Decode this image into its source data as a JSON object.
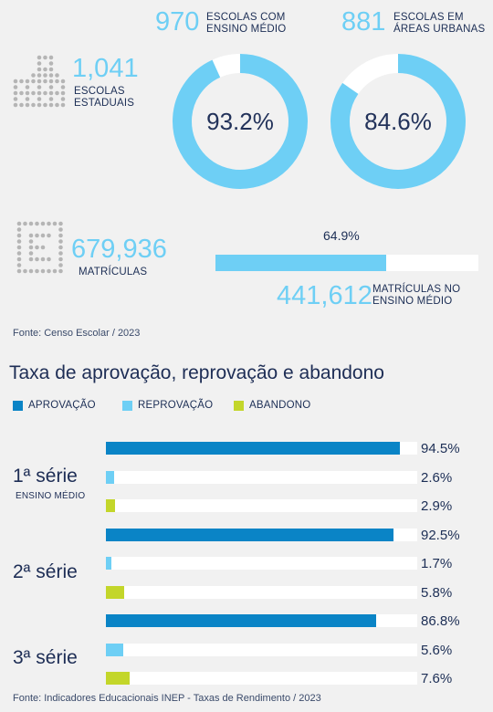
{
  "colors": {
    "aprovacao": "#0a84c6",
    "reprovacao": "#6ecff5",
    "abandono": "#c3d62a",
    "track": "#ffffff",
    "icon": "#b5b5b5",
    "accent": "#6ecff5"
  },
  "stats": {
    "escolas_estaduais": {
      "value": "1,041",
      "label_1": "ESCOLAS",
      "label_2": "ESTADUAIS",
      "icon": "building-icon"
    },
    "ensino_medio": {
      "value": "970",
      "label_1": "ESCOLAS COM",
      "label_2": "ENSINO MÉDIO",
      "percent_text": "93.2%",
      "percent": 93.2
    },
    "areas_urbanas": {
      "value": "881",
      "label_1": "ESCOLAS EM",
      "label_2": "ÁREAS URBANAS",
      "percent_text": "84.6%",
      "percent": 84.6
    },
    "matriculas": {
      "value": "679,936",
      "label": "MATRÍCULAS",
      "icon": "document-icon"
    },
    "matriculas_ensino_medio": {
      "value": "441,612",
      "label_1": "MATRÍCULAS NO",
      "label_2": "ENSINO MÉDIO",
      "percent_text": "64.9%",
      "percent": 64.9
    },
    "source": "Fonte: Censo Escolar / 2023"
  },
  "chart_data": {
    "type": "bar",
    "title": "Taxa de aprovação, reprovação e abandono",
    "legend": [
      "APROVAÇÃO",
      "REPROVAÇÃO",
      "ABANDONO"
    ],
    "xlim": [
      0,
      100
    ],
    "groups": [
      {
        "label": "1ª série",
        "sublabel": "ENSINO MÉDIO",
        "values": [
          94.5,
          2.6,
          2.9
        ],
        "value_labels": [
          "94.5%",
          "2.6%",
          "2.9%"
        ]
      },
      {
        "label": "2ª série",
        "sublabel": "",
        "values": [
          92.5,
          1.7,
          5.8
        ],
        "value_labels": [
          "92.5%",
          "1.7%",
          "5.8%"
        ]
      },
      {
        "label": "3ª série",
        "sublabel": "",
        "values": [
          86.8,
          5.6,
          7.6
        ],
        "value_labels": [
          "86.8%",
          "5.6%",
          "7.6%"
        ]
      }
    ],
    "source": "Fonte: Indicadores Educacionais INEP - Taxas de Rendimento / 2023"
  }
}
